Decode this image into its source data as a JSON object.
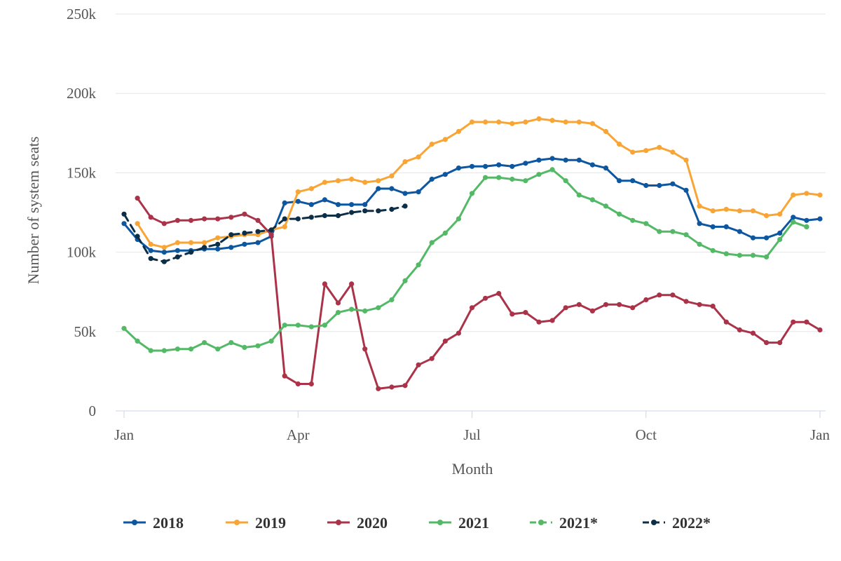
{
  "chart_data": {
    "type": "line",
    "xlabel": "Month",
    "ylabel": "Number of system seats",
    "x_ticks": [
      {
        "label": "Jan",
        "week": 1
      },
      {
        "label": "Apr",
        "week": 14
      },
      {
        "label": "Jul",
        "week": 27
      },
      {
        "label": "Oct",
        "week": 40
      },
      {
        "label": "Jan",
        "week": 53
      }
    ],
    "x_range_weeks": [
      1,
      53
    ],
    "y_ticks": [
      {
        "label": "0",
        "value": 0
      },
      {
        "label": "50k",
        "value": 50000
      },
      {
        "label": "100k",
        "value": 100000
      },
      {
        "label": "150k",
        "value": 150000
      },
      {
        "label": "200k",
        "value": 200000
      },
      {
        "label": "250k",
        "value": 250000
      }
    ],
    "ylim": [
      0,
      250000
    ],
    "grid": "horizontal",
    "legend_position": "bottom",
    "series": [
      {
        "name": "2018",
        "color": "#0d56a0",
        "dashed": false,
        "start_week": 1,
        "values": [
          118000,
          108000,
          101000,
          100000,
          101000,
          101000,
          102000,
          102000,
          103000,
          105000,
          106000,
          110000,
          131000,
          132000,
          130000,
          133000,
          130000,
          130000,
          130000,
          140000,
          140000,
          137000,
          138000,
          146000,
          149000,
          153000,
          154000,
          154000,
          155000,
          154000,
          156000,
          158000,
          159000,
          158000,
          158000,
          155000,
          153000,
          145000,
          145000,
          142000,
          142000,
          143000,
          139000,
          118000,
          116000,
          116000,
          113000,
          109000,
          109000,
          112000,
          122000,
          120000,
          121000
        ]
      },
      {
        "name": "2019",
        "color": "#f8a535",
        "dashed": false,
        "start_week": 2,
        "values": [
          118000,
          105000,
          103000,
          106000,
          106000,
          106000,
          109000,
          110000,
          111000,
          111000,
          114000,
          116000,
          138000,
          140000,
          144000,
          145000,
          146000,
          144000,
          145000,
          148000,
          157000,
          160000,
          168000,
          171000,
          176000,
          182000,
          182000,
          182000,
          181000,
          182000,
          184000,
          183000,
          182000,
          182000,
          181000,
          176000,
          168000,
          163000,
          164000,
          166000,
          163000,
          158000,
          129000,
          126000,
          127000,
          126000,
          126000,
          123000,
          124000,
          136000,
          137000,
          136000
        ]
      },
      {
        "name": "2020",
        "color": "#ab3349",
        "dashed": false,
        "start_week": 2,
        "values": [
          134000,
          122000,
          118000,
          120000,
          120000,
          121000,
          121000,
          122000,
          124000,
          120000,
          111000,
          22000,
          17000,
          17000,
          80000,
          68000,
          80000,
          39000,
          14000,
          15000,
          16000,
          29000,
          33000,
          44000,
          49000,
          65000,
          71000,
          74000,
          61000,
          62000,
          56000,
          57000,
          65000,
          67000,
          63000,
          67000,
          67000,
          65000,
          70000,
          73000,
          73000,
          69000,
          67000,
          66000,
          56000,
          51000,
          49000,
          43000,
          43000,
          56000,
          56000,
          51000
        ]
      },
      {
        "name": "2021",
        "color": "#53b966",
        "dashed": false,
        "start_week": 1,
        "values": [
          52000,
          44000,
          38000,
          38000,
          39000,
          39000,
          43000,
          39000,
          43000,
          40000,
          41000,
          44000,
          54000,
          54000,
          53000,
          54000,
          62000,
          64000,
          63000,
          65000,
          70000,
          82000,
          92000,
          106000,
          112000,
          121000,
          137000,
          147000,
          147000,
          146000,
          145000,
          149000,
          152000,
          145000,
          136000,
          133000,
          129000,
          124000,
          120000,
          118000,
          113000,
          113000,
          111000,
          105000,
          101000,
          99000,
          98000,
          98000,
          97000,
          108000,
          119000,
          116000
        ]
      },
      {
        "name": "2021*",
        "color": "#53b966",
        "dashed": true,
        "start_week": 51,
        "values": [
          119000,
          116000
        ]
      },
      {
        "name": "2022*",
        "color": "#0c2f47",
        "dashed": true,
        "start_week": 1,
        "values": [
          124000,
          110000,
          96000,
          94000,
          97000,
          100000,
          103000,
          105000,
          111000,
          112000,
          113000,
          114000,
          121000,
          121000,
          122000,
          123000,
          123000,
          125000,
          126000,
          126000,
          127000,
          129000
        ]
      }
    ]
  }
}
